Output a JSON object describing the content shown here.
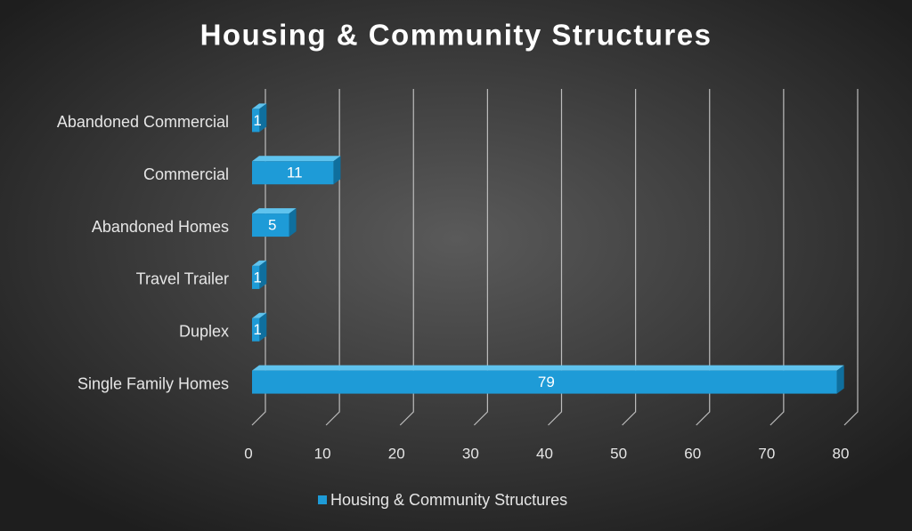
{
  "chart_data": {
    "type": "bar3d",
    "orientation": "horizontal",
    "title": "Housing & Community Structures",
    "categories": [
      "Single Family Homes",
      "Duplex",
      "Travel Trailer",
      "Abandoned Homes",
      "Commercial",
      "Abandoned Commercial"
    ],
    "series": [
      {
        "name": "Housing & Community Structures",
        "color": "#1e9bd7",
        "values": [
          79,
          1,
          1,
          5,
          11,
          1
        ]
      }
    ],
    "xlim": [
      0,
      80
    ],
    "xticks": [
      0,
      10,
      20,
      30,
      40,
      50,
      60,
      70,
      80
    ],
    "grid": true,
    "legend": "bottom"
  }
}
